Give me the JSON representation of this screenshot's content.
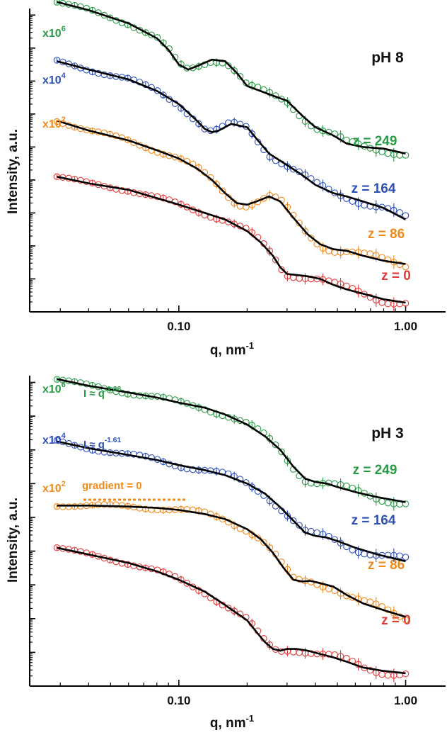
{
  "chart_data": [
    {
      "type": "scatter",
      "title": "pH 8",
      "xlabel": "q, nm",
      "xlabel_sup": "-1",
      "ylabel": "Intensity, a.u.",
      "xscale": "log",
      "yscale": "log",
      "xlim": [
        0.022,
        1.5
      ],
      "ylim_decades": [
        0,
        9.2
      ],
      "xticks": [
        {
          "value": 0.1,
          "label": "0.10"
        },
        {
          "value": 1.0,
          "label": "1.00"
        }
      ],
      "grid": false,
      "legend": "none",
      "series": [
        {
          "key": "z0",
          "label": "z = 0",
          "multiplier_base": "",
          "multiplier_exp": "",
          "color": "#e03a3a",
          "x": [
            0.029,
            0.04,
            0.06,
            0.08,
            0.1,
            0.13,
            0.16,
            0.2,
            0.23,
            0.26,
            0.28,
            0.3,
            0.33,
            0.37,
            0.42,
            0.48,
            0.55,
            0.65,
            0.8,
            1.0
          ],
          "y": [
            4.1,
            3.9,
            3.7,
            3.45,
            3.25,
            3.0,
            2.8,
            2.45,
            2.1,
            1.7,
            1.35,
            1.15,
            1.12,
            1.08,
            1.0,
            0.82,
            0.68,
            0.55,
            0.38,
            0.28
          ]
        },
        {
          "key": "z86",
          "label": "z = 86",
          "multiplier_base": "x10",
          "multiplier_exp": "2",
          "color": "#f08a1c",
          "x": [
            0.029,
            0.04,
            0.06,
            0.08,
            0.1,
            0.12,
            0.14,
            0.16,
            0.18,
            0.2,
            0.22,
            0.25,
            0.28,
            0.32,
            0.37,
            0.42,
            0.48,
            0.55,
            0.65,
            0.8,
            1.0
          ],
          "y": [
            5.8,
            5.5,
            5.2,
            4.9,
            4.65,
            4.35,
            4.0,
            3.6,
            3.3,
            3.25,
            3.35,
            3.5,
            3.35,
            2.85,
            2.35,
            2.05,
            1.9,
            1.85,
            1.7,
            1.55,
            1.45
          ]
        },
        {
          "key": "z164",
          "label": "z = 164",
          "multiplier_base": "x10",
          "multiplier_exp": "4",
          "color": "#2e4fb8",
          "x": [
            0.029,
            0.04,
            0.06,
            0.08,
            0.1,
            0.12,
            0.13,
            0.14,
            0.15,
            0.17,
            0.2,
            0.22,
            0.25,
            0.3,
            0.35,
            0.4,
            0.48,
            0.55,
            0.65,
            0.8,
            1.0
          ],
          "y": [
            7.6,
            7.35,
            7.05,
            6.7,
            6.3,
            5.8,
            5.55,
            5.45,
            5.5,
            5.7,
            5.6,
            5.25,
            4.8,
            4.45,
            4.15,
            3.85,
            3.6,
            3.5,
            3.35,
            3.15,
            2.8
          ]
        },
        {
          "key": "z249",
          "label": "z = 249",
          "multiplier_base": "x10",
          "multiplier_exp": "6",
          "color": "#2a9a46",
          "x": [
            0.029,
            0.04,
            0.06,
            0.08,
            0.09,
            0.1,
            0.11,
            0.12,
            0.14,
            0.16,
            0.18,
            0.2,
            0.25,
            0.3,
            0.35,
            0.4,
            0.48,
            0.55,
            0.65,
            0.8,
            1.0
          ],
          "y": [
            9.4,
            9.15,
            8.75,
            8.3,
            7.95,
            7.5,
            7.35,
            7.45,
            7.65,
            7.6,
            7.25,
            6.85,
            6.6,
            6.4,
            5.95,
            5.6,
            5.35,
            5.1,
            5.0,
            4.95,
            4.8
          ]
        }
      ]
    },
    {
      "type": "scatter",
      "title": "pH 3",
      "xlabel": "q, nm",
      "xlabel_sup": "-1",
      "ylabel": "Intensity, a.u.",
      "xscale": "log",
      "yscale": "log",
      "xlim": [
        0.022,
        1.5
      ],
      "ylim_decades": [
        0,
        9.2
      ],
      "xticks": [
        {
          "value": 0.1,
          "label": "0.10"
        },
        {
          "value": 1.0,
          "label": "1.00"
        }
      ],
      "grid": false,
      "legend": "none",
      "annotations": [
        {
          "key": "a249",
          "text_base": "I ≈ q",
          "text_exp": "-1.88",
          "color": "#2a9a46"
        },
        {
          "key": "a164",
          "text_base": "I ≈ q",
          "text_exp": "-1.61",
          "color": "#2e4fb8"
        },
        {
          "key": "a86",
          "text_base": "gradient = 0",
          "text_exp": "",
          "color": "#f08a1c"
        }
      ],
      "series": [
        {
          "key": "z0",
          "label": "z = 0",
          "multiplier_base": "",
          "multiplier_exp": "",
          "color": "#e03a3a",
          "x": [
            0.029,
            0.04,
            0.06,
            0.08,
            0.1,
            0.13,
            0.16,
            0.2,
            0.22,
            0.24,
            0.26,
            0.28,
            0.3,
            0.33,
            0.37,
            0.42,
            0.48,
            0.55,
            0.65,
            0.8,
            1.0
          ],
          "y": [
            4.1,
            3.9,
            3.65,
            3.4,
            3.15,
            2.8,
            2.4,
            1.95,
            1.6,
            1.3,
            1.1,
            1.05,
            1.1,
            1.1,
            1.05,
            0.95,
            0.85,
            0.72,
            0.55,
            0.45,
            0.38
          ]
        },
        {
          "key": "z86",
          "label": "z = 86",
          "multiplier_base": "x10",
          "multiplier_exp": "2",
          "color": "#f08a1c",
          "x": [
            0.029,
            0.04,
            0.06,
            0.08,
            0.1,
            0.13,
            0.16,
            0.2,
            0.23,
            0.26,
            0.29,
            0.32,
            0.35,
            0.38,
            0.42,
            0.48,
            0.55,
            0.65,
            0.8,
            1.0
          ],
          "y": [
            5.35,
            5.35,
            5.32,
            5.28,
            5.22,
            5.1,
            4.95,
            4.65,
            4.35,
            3.95,
            3.5,
            3.15,
            3.1,
            3.12,
            3.05,
            2.95,
            2.7,
            2.45,
            2.25,
            2.05
          ]
        },
        {
          "key": "z164",
          "label": "z = 164",
          "multiplier_base": "x10",
          "multiplier_exp": "4",
          "color": "#2e4fb8",
          "x": [
            0.029,
            0.04,
            0.06,
            0.08,
            0.1,
            0.13,
            0.16,
            0.2,
            0.24,
            0.28,
            0.32,
            0.36,
            0.4,
            0.45,
            0.5,
            0.6,
            0.75,
            1.0
          ],
          "y": [
            7.25,
            7.05,
            6.85,
            6.7,
            6.55,
            6.4,
            6.25,
            6.0,
            5.7,
            5.3,
            4.9,
            4.55,
            4.45,
            4.4,
            4.3,
            4.1,
            3.9,
            3.7
          ]
        },
        {
          "key": "z249",
          "label": "z = 249",
          "multiplier_base": "x10",
          "multiplier_exp": "6",
          "color": "#2a9a46",
          "x": [
            0.029,
            0.04,
            0.06,
            0.08,
            0.1,
            0.13,
            0.16,
            0.2,
            0.24,
            0.28,
            0.32,
            0.36,
            0.4,
            0.45,
            0.5,
            0.6,
            0.75,
            1.0
          ],
          "y": [
            9.1,
            8.9,
            8.7,
            8.55,
            8.4,
            8.25,
            8.05,
            7.75,
            7.4,
            7.0,
            6.5,
            6.15,
            6.05,
            6.0,
            5.9,
            5.75,
            5.6,
            5.45
          ]
        }
      ]
    }
  ]
}
